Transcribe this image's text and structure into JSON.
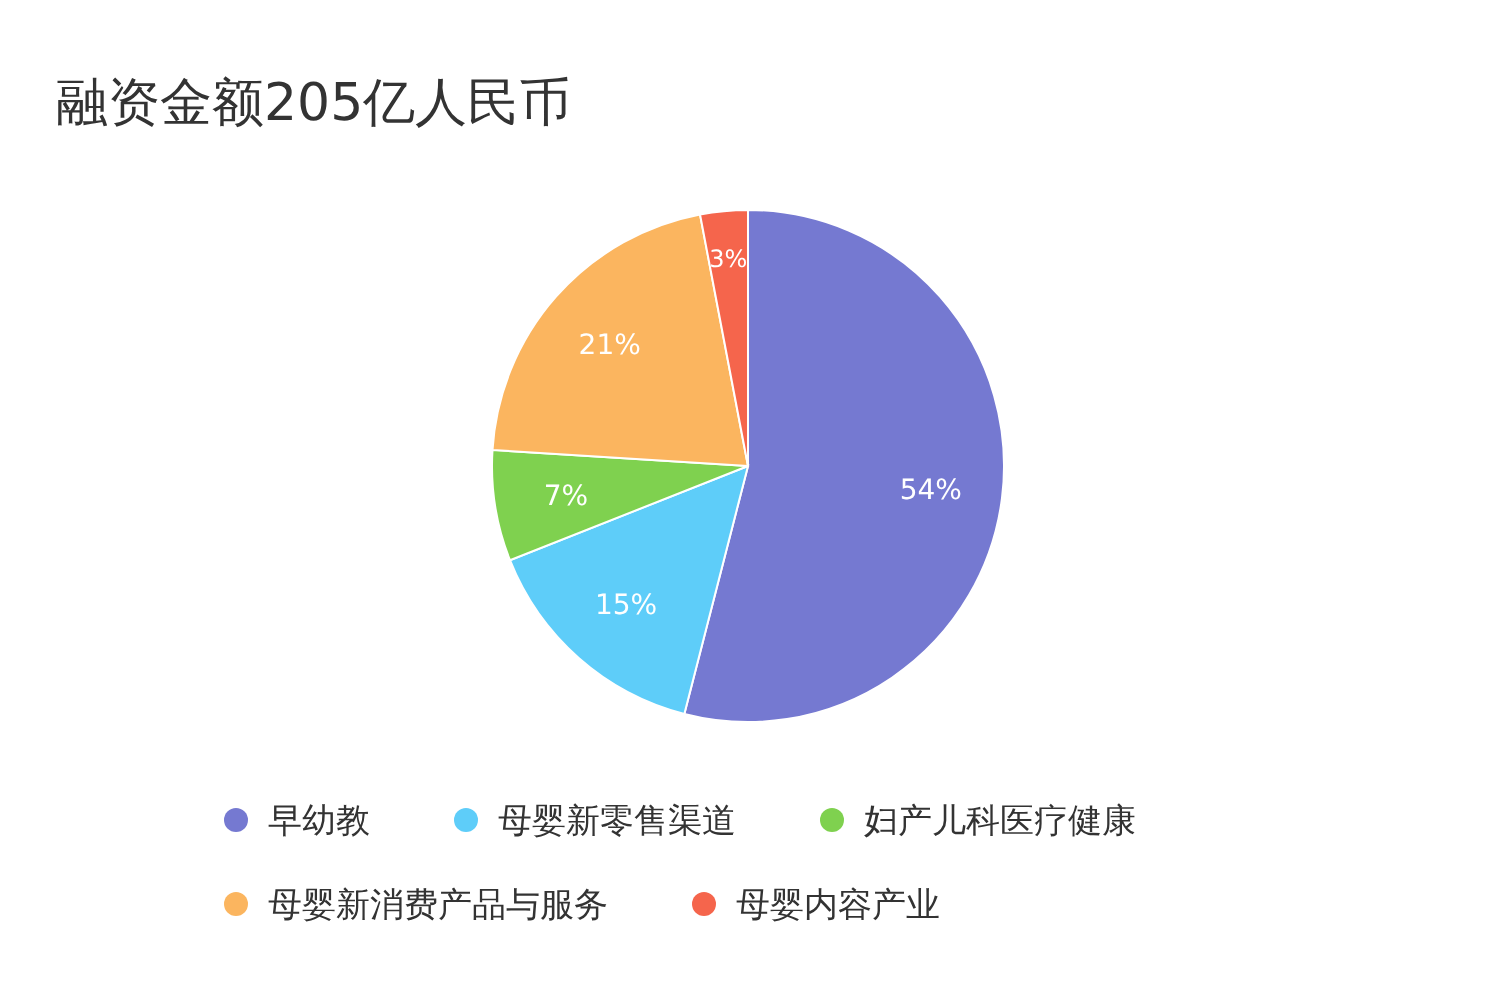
{
  "chart_data": {
    "type": "pie",
    "title": "融资金额205亿人民币",
    "categories": [
      "早幼教",
      "母婴新零售渠道",
      "妇产儿科医疗健康",
      "母婴新消费产品与服务",
      "母婴内容产业"
    ],
    "values": [
      54,
      15,
      7,
      21,
      3
    ],
    "colors": [
      "#7579d1",
      "#5ecdf9",
      "#7fd14f",
      "#fbb55f",
      "#f5654c"
    ],
    "value_labels": [
      "54%",
      "15%",
      "7%",
      "21%",
      "3%"
    ],
    "legend": "bottom"
  }
}
